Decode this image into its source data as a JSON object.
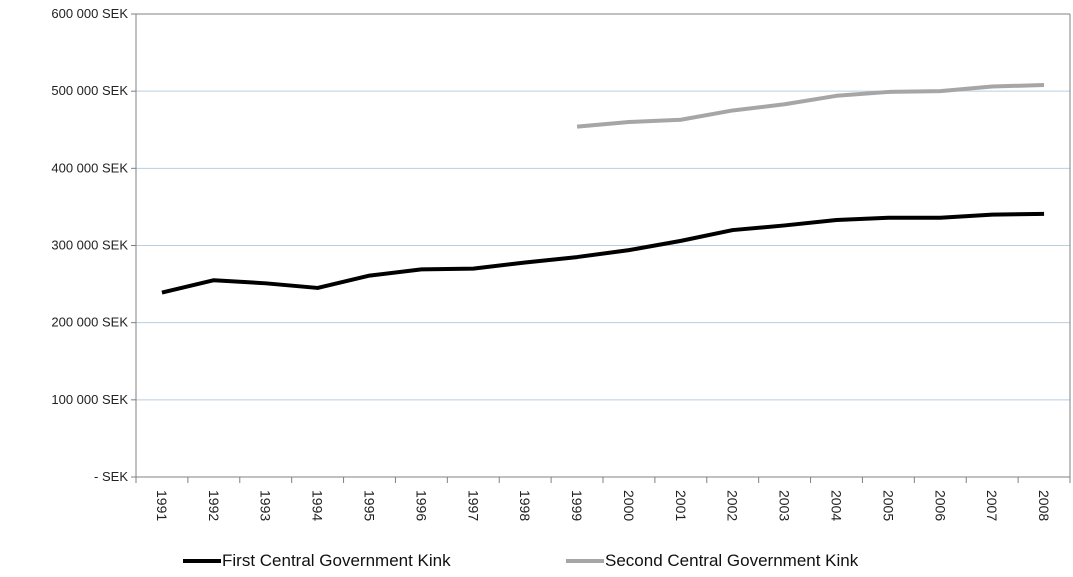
{
  "chart_data": {
    "type": "line",
    "categories": [
      "1991",
      "1992",
      "1993",
      "1994",
      "1995",
      "1996",
      "1997",
      "1998",
      "1999",
      "2000",
      "2001",
      "2002",
      "2003",
      "2004",
      "2005",
      "2006",
      "2007",
      "2008"
    ],
    "y_ticks": [
      "- SEK",
      "100 000 SEK",
      "200 000 SEK",
      "300 000 SEK",
      "400 000 SEK",
      "500 000 SEK",
      "600 000 SEK"
    ],
    "ylim": [
      0,
      600000
    ],
    "grid": true,
    "legend_position": "bottom",
    "series": [
      {
        "name": "First Central Government Kink",
        "color": "#000000",
        "values": [
          239000,
          255000,
          251000,
          245000,
          261000,
          269000,
          270000,
          278000,
          285000,
          294000,
          306000,
          320000,
          326000,
          333000,
          336000,
          336000,
          340000,
          341000
        ]
      },
      {
        "name": "Second Central Government Kink",
        "color": "#a6a6a6",
        "values": [
          null,
          null,
          null,
          null,
          null,
          null,
          null,
          null,
          454000,
          460000,
          463000,
          475000,
          483000,
          494000,
          499000,
          500000,
          506000,
          508000
        ]
      }
    ]
  }
}
